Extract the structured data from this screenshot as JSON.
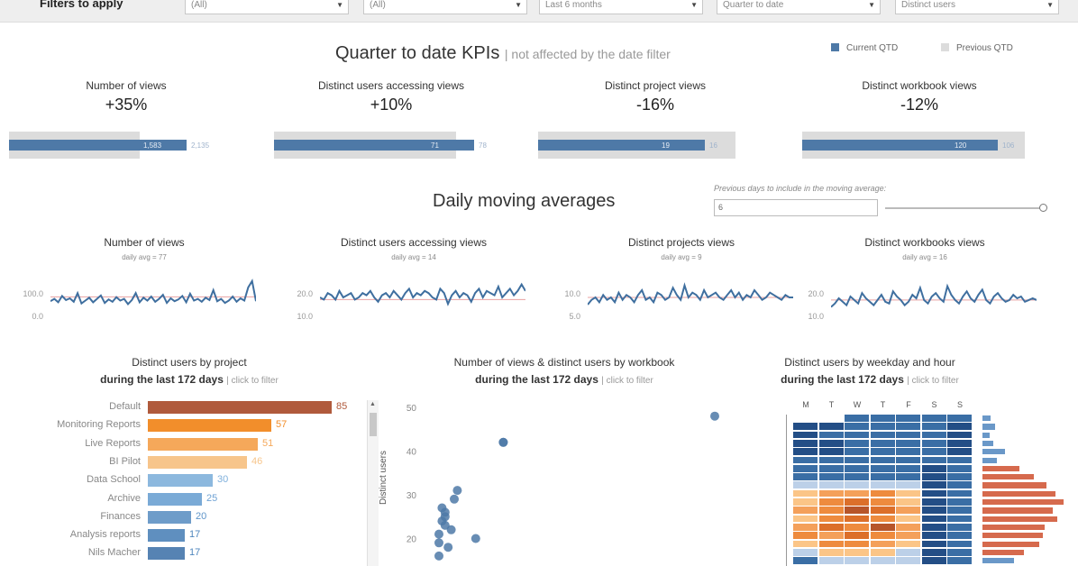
{
  "filters": {
    "label": "Filters to apply",
    "dropdowns": [
      "(All)",
      "(All)",
      "Last 6 months",
      "Quarter to date",
      "Distinct users"
    ]
  },
  "kpi_section": {
    "title": "Quarter to date KPIs",
    "subtitle": "| not affected by the date filter",
    "legend": [
      {
        "label": "Current QTD",
        "color": "#4e79a7"
      },
      {
        "label": "Previous QTD",
        "color": "#dcdcdc"
      }
    ],
    "kpis": [
      {
        "name": "Number of views",
        "value": "+35%",
        "current_num": "2,135",
        "previous_num": "1,583",
        "current_frac": 0.8,
        "previous_frac": 0.59
      },
      {
        "name": "Distinct users accessing views",
        "value": "+10%",
        "current_num": "78",
        "previous_num": "71",
        "current_frac": 0.9,
        "previous_frac": 0.82
      },
      {
        "name": "Distinct project views",
        "value": "-16%",
        "current_num": "16",
        "previous_num": "19",
        "current_frac": 0.75,
        "previous_frac": 0.89
      },
      {
        "name": "Distinct workbook views",
        "value": "-12%",
        "current_num": "106",
        "previous_num": "120",
        "current_frac": 0.88,
        "previous_frac": 1.0
      }
    ]
  },
  "ma_section": {
    "title": "Daily moving averages",
    "param_label": "Previous days to include in the moving average:",
    "param_value": "6",
    "charts": [
      {
        "name": "Number of views",
        "sub": "daily avg = 77",
        "ticks": [
          "100.0",
          "0.0"
        ],
        "ymin": 0,
        "ymax": 150,
        "avg": 77,
        "values": [
          62,
          70,
          58,
          80,
          66,
          72,
          60,
          90,
          54,
          64,
          74,
          58,
          70,
          82,
          56,
          68,
          60,
          76,
          64,
          70,
          52,
          66,
          90,
          58,
          74,
          64,
          78,
          60,
          70,
          84,
          56,
          72,
          62,
          68,
          80,
          58,
          88,
          64,
          70,
          60,
          74,
          66,
          100,
          62,
          70,
          56,
          64,
          78,
          60,
          72,
          64,
          110,
          132,
          62
        ]
      },
      {
        "name": "Distinct users accessing views",
        "sub": "daily avg = 14",
        "ticks": [
          "20.0",
          "10.0"
        ],
        "ymin": 5,
        "ymax": 25,
        "avg": 14,
        "values": [
          15,
          14,
          17,
          16,
          14,
          18,
          15,
          16,
          17,
          14,
          15,
          17,
          16,
          18,
          15,
          13,
          16,
          17,
          15,
          18,
          16,
          14,
          17,
          19,
          15,
          17,
          16,
          18,
          17,
          15,
          14,
          19,
          17,
          12,
          16,
          18,
          15,
          17,
          16,
          13,
          17,
          19,
          15,
          18,
          17,
          16,
          20,
          15,
          17,
          19,
          16,
          18,
          21,
          18
        ]
      },
      {
        "name": "Distinct projects views",
        "sub": "daily avg = 9",
        "ticks": [
          "10.0",
          "5.0"
        ],
        "ymin": 0,
        "ymax": 18,
        "avg": 9,
        "values": [
          6,
          8,
          9,
          7,
          10,
          8,
          9,
          7,
          11,
          8,
          10,
          9,
          7,
          10,
          12,
          8,
          9,
          7,
          11,
          10,
          8,
          9,
          13,
          10,
          8,
          14,
          9,
          11,
          10,
          8,
          12,
          9,
          10,
          11,
          9,
          8,
          10,
          12,
          9,
          11,
          8,
          10,
          9,
          12,
          10,
          8,
          9,
          11,
          10,
          9,
          8,
          10,
          9,
          9
        ]
      },
      {
        "name": "Distinct workbooks views",
        "sub": "daily avg = 16",
        "ticks": [
          "20.0",
          "10.0"
        ],
        "ymin": 5,
        "ymax": 30,
        "avg": 16,
        "values": [
          12,
          14,
          17,
          15,
          13,
          18,
          16,
          14,
          20,
          17,
          15,
          13,
          16,
          19,
          15,
          14,
          21,
          18,
          16,
          13,
          15,
          19,
          17,
          23,
          16,
          14,
          18,
          20,
          17,
          15,
          24,
          19,
          16,
          14,
          18,
          21,
          17,
          15,
          19,
          22,
          16,
          14,
          18,
          20,
          17,
          15,
          16,
          19,
          17,
          18,
          15,
          16,
          17,
          16
        ]
      }
    ]
  },
  "projects": {
    "title": "Distinct users by project",
    "title2_bold": "during the last 172 days",
    "click": "| click to filter",
    "items": [
      {
        "label": "Default",
        "value": 85,
        "color": "#b05a3c",
        "text_color": "#b05a3c"
      },
      {
        "label": "Monitoring Reports",
        "value": 57,
        "color": "#f28e2b",
        "text_color": "#f28e2b"
      },
      {
        "label": "Live Reports",
        "value": 51,
        "color": "#f5a85a",
        "text_color": "#f5a85a"
      },
      {
        "label": "BI Pilot",
        "value": 46,
        "color": "#f7c58b",
        "text_color": "#f7c58b"
      },
      {
        "label": "Data School",
        "value": 30,
        "color": "#8cb8de",
        "text_color": "#7fb0dc"
      },
      {
        "label": "Archive",
        "value": 25,
        "color": "#7aaad6",
        "text_color": "#6fa2d4"
      },
      {
        "label": "Finances",
        "value": 20,
        "color": "#6e9cc9",
        "text_color": "#5f95c9"
      },
      {
        "label": "Analysis reports",
        "value": 17,
        "color": "#5f8fbf",
        "text_color": "#4f86bd"
      },
      {
        "label": "Nils Macher",
        "value": 17,
        "color": "#5683b3",
        "text_color": "#4f86bd"
      }
    ]
  },
  "scatter": {
    "title": "Number of views & distinct users by workbook",
    "title2_bold": "during the last 172 days",
    "click": "| click to filter",
    "ylabel": "Distinct users",
    "yticks": [
      "50",
      "40",
      "30",
      "20"
    ]
  },
  "chart_data": {
    "type": "scatter",
    "title": "Number of views & distinct users by workbook",
    "ylabel": "Distinct users",
    "ylim": [
      15,
      52
    ],
    "x": [
      10,
      10,
      11,
      12,
      12,
      11,
      10,
      13,
      14,
      15,
      16,
      12,
      22,
      31,
      31,
      100
    ],
    "y": [
      19,
      21,
      24,
      25,
      26,
      27,
      16,
      18,
      22,
      29,
      31,
      23,
      20,
      42,
      42,
      48
    ]
  },
  "heatmap": {
    "title": "Distinct users by weekday and hour",
    "title2_bold": "during the last 172 days",
    "click": "| click to filter",
    "days": [
      "M",
      "T",
      "W",
      "T",
      "F",
      "S",
      "S"
    ],
    "rows": [
      [
        0,
        0,
        1,
        1,
        1,
        1,
        1
      ],
      [
        0,
        0,
        1,
        1,
        1,
        1,
        0
      ],
      [
        0,
        1,
        1,
        1,
        1,
        1,
        0
      ],
      [
        0,
        0,
        1,
        1,
        1,
        1,
        0
      ],
      [
        0,
        0,
        1,
        1,
        1,
        1,
        0
      ],
      [
        1,
        1,
        1,
        1,
        1,
        1,
        1
      ],
      [
        1,
        1,
        1,
        1,
        1,
        0,
        1
      ],
      [
        1,
        1,
        1,
        1,
        1,
        0,
        1
      ],
      [
        2,
        2,
        2,
        2,
        2,
        0,
        1
      ],
      [
        3,
        4,
        4,
        5,
        3,
        0,
        1
      ],
      [
        3,
        5,
        6,
        5,
        3,
        0,
        1
      ],
      [
        4,
        5,
        7,
        6,
        4,
        0,
        1
      ],
      [
        3,
        5,
        6,
        5,
        3,
        0,
        1
      ],
      [
        4,
        6,
        5,
        7,
        4,
        0,
        1
      ],
      [
        5,
        4,
        6,
        5,
        4,
        0,
        1
      ],
      [
        3,
        5,
        5,
        4,
        3,
        0,
        1
      ],
      [
        2,
        3,
        3,
        3,
        2,
        0,
        1
      ],
      [
        1,
        2,
        2,
        2,
        2,
        0,
        1
      ]
    ],
    "hist": [
      8,
      12,
      7,
      10,
      22,
      14,
      36,
      50,
      62,
      70,
      78,
      68,
      72,
      60,
      58,
      55,
      40,
      30
    ],
    "palette": {
      "0": "#234e86",
      "1": "#3a6ea5",
      "2": "#bcd0e8",
      "3": "#fbc587",
      "4": "#f4a05a",
      "5": "#ee8b3e",
      "6": "#dc6f2a",
      "7": "#b7552a"
    }
  }
}
